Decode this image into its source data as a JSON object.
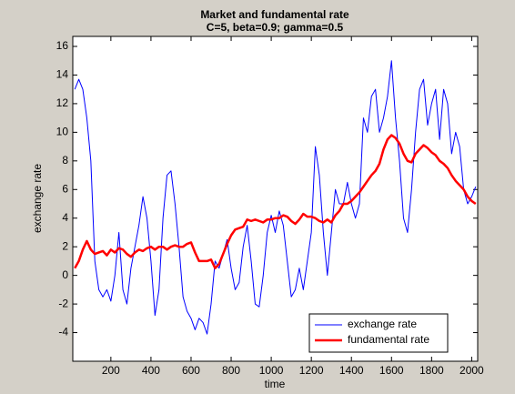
{
  "chart_data": {
    "type": "line",
    "title": "Market and fundamental rate",
    "subtitle": "C=5, beta=0.9; gamma=0.5",
    "x_label": "time",
    "y_label": "exchange rate",
    "x": [
      20,
      40,
      60,
      80,
      100,
      120,
      140,
      160,
      180,
      200,
      220,
      240,
      260,
      280,
      300,
      320,
      340,
      360,
      380,
      400,
      420,
      440,
      460,
      480,
      500,
      520,
      540,
      560,
      580,
      600,
      620,
      640,
      660,
      680,
      700,
      720,
      740,
      760,
      780,
      800,
      820,
      840,
      860,
      880,
      900,
      920,
      940,
      960,
      980,
      1000,
      1020,
      1040,
      1060,
      1080,
      1100,
      1120,
      1140,
      1160,
      1180,
      1200,
      1220,
      1240,
      1260,
      1280,
      1300,
      1320,
      1340,
      1360,
      1380,
      1400,
      1420,
      1440,
      1460,
      1480,
      1500,
      1520,
      1540,
      1560,
      1580,
      1600,
      1620,
      1640,
      1660,
      1680,
      1700,
      1720,
      1740,
      1760,
      1780,
      1800,
      1820,
      1840,
      1860,
      1880,
      1900,
      1920,
      1940,
      1960,
      1980,
      2000,
      2020
    ],
    "series": [
      {
        "name": "exchange rate",
        "color": "#0000ff",
        "values": [
          13,
          13.7,
          13,
          11,
          8,
          1,
          -1,
          -1.5,
          -1,
          -1.8,
          0,
          3,
          -1,
          -2,
          0.5,
          2,
          3.5,
          5.5,
          4,
          1,
          -2.8,
          -1,
          4,
          7,
          7.3,
          5,
          2,
          -1.5,
          -2.5,
          -3,
          -3.8,
          -3,
          -3.3,
          -4.1,
          -2,
          1,
          0.5,
          1.5,
          2.5,
          0.5,
          -1,
          -0.5,
          2,
          3.5,
          1,
          -2,
          -2.2,
          0,
          3,
          4.2,
          3,
          4.5,
          3.5,
          1,
          -1.5,
          -1,
          0.5,
          -1,
          1,
          3,
          9,
          7,
          3,
          0,
          3,
          6,
          5,
          5,
          6.5,
          5,
          4,
          5,
          11,
          10,
          12.5,
          13,
          10,
          11,
          12.5,
          15,
          11,
          8,
          4,
          3,
          6,
          10,
          13,
          13.7,
          10.5,
          12,
          13,
          9.5,
          13,
          12,
          8.5,
          10,
          9,
          6,
          5,
          5.5,
          6.2
        ]
      },
      {
        "name": "fundamental rate",
        "color": "#ff0000",
        "values": [
          0.5,
          1,
          1.8,
          2.4,
          1.8,
          1.5,
          1.6,
          1.7,
          1.4,
          1.8,
          1.6,
          1.9,
          1.8,
          1.5,
          1.3,
          1.6,
          1.8,
          1.7,
          1.9,
          2,
          1.8,
          2,
          2,
          1.8,
          2,
          2.1,
          2,
          2,
          2.2,
          2.3,
          1.6,
          1,
          1,
          1,
          1.1,
          0.5,
          0.8,
          1.5,
          2.2,
          2.8,
          3.2,
          3.3,
          3.4,
          3.9,
          3.8,
          3.9,
          3.8,
          3.7,
          3.9,
          3.9,
          4,
          4,
          4.2,
          4.1,
          3.8,
          3.6,
          3.9,
          4.3,
          4.1,
          4.1,
          4,
          3.8,
          3.7,
          3.9,
          3.7,
          4.2,
          4.5,
          5,
          5,
          5.2,
          5.5,
          5.8,
          6.2,
          6.6,
          7,
          7.3,
          7.8,
          8.8,
          9.5,
          9.8,
          9.6,
          9.2,
          8.5,
          8,
          7.9,
          8.5,
          8.8,
          9.1,
          8.9,
          8.6,
          8.4,
          8,
          7.8,
          7.5,
          7,
          6.6,
          6.3,
          6,
          5.5,
          5.2,
          5
        ]
      }
    ],
    "xlim": [
      10,
      2030
    ],
    "xticks": [
      200,
      400,
      600,
      800,
      1000,
      1200,
      1400,
      1600,
      1800,
      2000
    ],
    "ylim": [
      -6,
      16.7
    ],
    "yticks": [
      -4,
      -2,
      0,
      2,
      4,
      6,
      8,
      10,
      12,
      14,
      16
    ],
    "legend": "lower right"
  }
}
